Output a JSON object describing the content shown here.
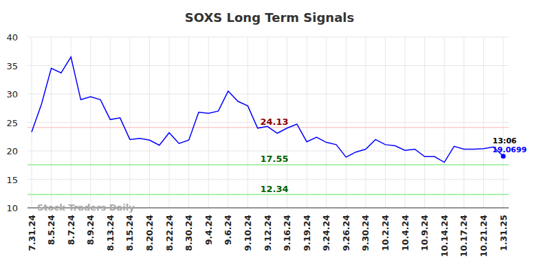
{
  "chart_data": {
    "type": "line",
    "title": "SOXS Long Term Signals",
    "categories": [
      "7.31.24",
      null,
      "8.5.24",
      null,
      "8.7.24",
      null,
      "8.9.24",
      null,
      "8.13.24",
      null,
      "8.15.24",
      null,
      "8.20.24",
      null,
      "8.22.24",
      null,
      "8.30.24",
      null,
      "9.4.24",
      null,
      "9.6.24",
      null,
      "9.10.24",
      null,
      "9.12.24",
      null,
      "9.16.24",
      null,
      "9.19.24",
      null,
      "9.24.24",
      null,
      "9.26.24",
      null,
      "9.30.24",
      null,
      "10.2.24",
      null,
      "10.4.24",
      null,
      "10.9.24",
      null,
      "10.14.24",
      null,
      "10.17.24",
      null,
      "10.21.24",
      null,
      "1.31.25"
    ],
    "values": [
      23.3,
      28.2,
      34.5,
      33.7,
      36.5,
      29.0,
      29.5,
      29.0,
      25.5,
      25.8,
      22.0,
      22.2,
      21.9,
      21.0,
      23.2,
      21.3,
      21.9,
      26.8,
      26.6,
      27.0,
      30.5,
      28.7,
      27.9,
      24.0,
      24.3,
      23.1,
      24.0,
      24.7,
      21.6,
      22.4,
      21.5,
      21.1,
      18.9,
      19.8,
      20.3,
      22.0,
      21.1,
      20.9,
      20.1,
      20.3,
      19.0,
      19.0,
      18.0,
      20.8,
      20.3,
      20.3,
      20.4,
      20.7,
      19.0699
    ],
    "color": "#0000ff",
    "ylim": [
      10,
      40
    ],
    "yticks": [
      10,
      15,
      20,
      25,
      30,
      35,
      40
    ],
    "grid": true,
    "reference_lines": [
      {
        "value": 24.13,
        "color": "#ffcccc",
        "text_color": "#8b0000"
      },
      {
        "value": 17.55,
        "color": "#90ee90",
        "text_color": "#006400"
      },
      {
        "value": 12.34,
        "color": "#90ee90",
        "text_color": "#006400"
      }
    ],
    "last_point_time": "13:06",
    "watermark": "Stock Traders Daily"
  }
}
